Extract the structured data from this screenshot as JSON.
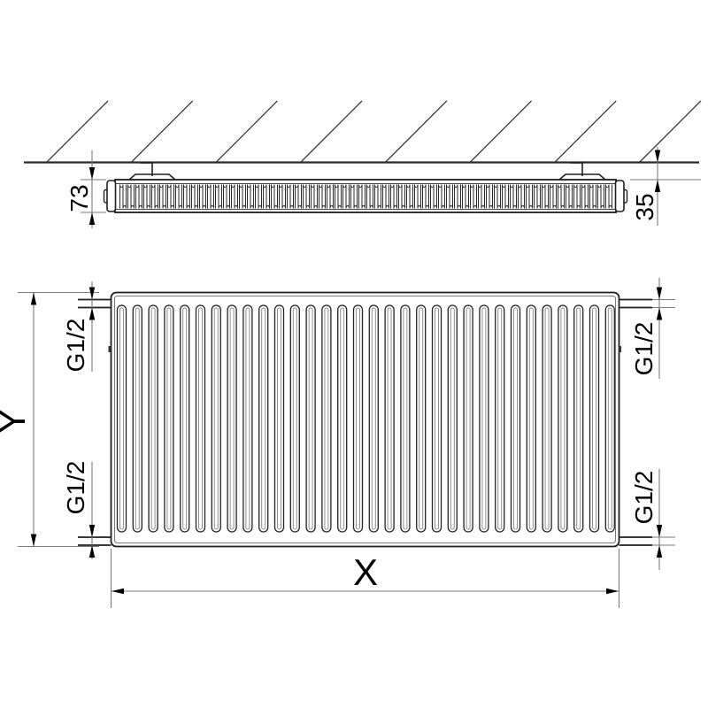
{
  "drawing": {
    "top_view": {
      "depth": "73",
      "wall_distance": "35"
    },
    "front_view": {
      "width": "X",
      "height": "Y",
      "conn_top_left": "G1/2",
      "conn_top_right": "G1/2",
      "conn_bottom_left": "G1/2",
      "conn_bottom_right": "G1/2"
    }
  },
  "colors": {
    "object_line": "#1f1f1f",
    "dim_line": "#7a7a7a",
    "text": "#000000",
    "background": "#ffffff"
  }
}
